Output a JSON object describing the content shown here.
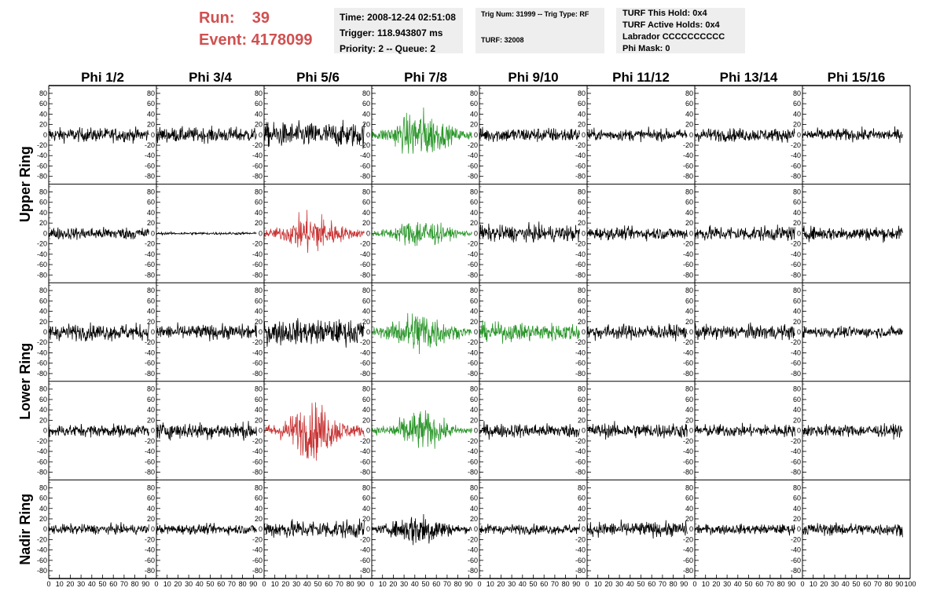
{
  "header": {
    "run_label": "Run:    39",
    "event_label": "Event: 4178099",
    "time": "Time: 2008-12-24 02:51:08",
    "trigger": "Trigger: 118.943807 ms",
    "priority": "Priority: 2 -- Queue: 2",
    "trig_num": "Trig Num: 31999 -- Trig Type: RF",
    "turf": "TURF: 32008",
    "turf_this_hold": "TURF This Hold: 0x4",
    "turf_active_holds": "TURF Active Holds: 0x4",
    "labrador": "Labrador CCCCCCCCCC",
    "phi_mask": "Phi Mask: 0"
  },
  "colors": {
    "normal": "#000000",
    "triggered_green": "#2a962a",
    "triggered_red": "#c83232",
    "header_red": "#d05050",
    "info_bg": "#eeeeee"
  },
  "chart_data": {
    "type": "line",
    "phi_labels": [
      "Phi 1/2",
      "Phi 3/4",
      "Phi 5/6",
      "Phi 7/8",
      "Phi 9/10",
      "Phi 11/12",
      "Phi 13/14",
      "Phi 15/16"
    ],
    "ring_labels": [
      "Upper Ring",
      "Lower Ring",
      "Nadir Ring"
    ],
    "x_ticks": [
      "0",
      "10",
      "20",
      "30",
      "40",
      "50",
      "60",
      "70",
      "80",
      "90",
      "100"
    ],
    "y_ticks": [
      "80",
      "60",
      "40",
      "20",
      "0",
      "-20",
      "-40",
      "-60",
      "-80"
    ],
    "xlim": [
      0,
      100
    ],
    "ylim": [
      -95,
      95
    ],
    "grid": false,
    "n_samples": 260,
    "amplitude": [
      [
        17,
        18,
        30,
        45,
        18,
        14,
        16,
        15
      ],
      [
        15,
        3,
        38,
        28,
        20,
        15,
        18,
        17
      ],
      [
        20,
        18,
        30,
        42,
        22,
        18,
        18,
        13
      ],
      [
        15,
        20,
        50,
        35,
        17,
        18,
        15,
        15
      ],
      [
        12,
        12,
        22,
        32,
        12,
        18,
        12,
        15
      ]
    ],
    "pulse_centered": [
      [
        false,
        false,
        false,
        true,
        false,
        false,
        false,
        false
      ],
      [
        false,
        false,
        true,
        true,
        false,
        false,
        false,
        false
      ],
      [
        false,
        false,
        false,
        true,
        false,
        false,
        false,
        false
      ],
      [
        false,
        false,
        true,
        true,
        false,
        false,
        false,
        false
      ],
      [
        false,
        false,
        false,
        true,
        false,
        false,
        false,
        false
      ]
    ],
    "trace_color": [
      [
        "normal",
        "normal",
        "normal",
        "triggered_green",
        "normal",
        "normal",
        "normal",
        "normal"
      ],
      [
        "normal",
        "normal",
        "triggered_red",
        "triggered_green",
        "normal",
        "normal",
        "normal",
        "normal"
      ],
      [
        "normal",
        "normal",
        "normal",
        "triggered_green",
        "triggered_green",
        "normal",
        "normal",
        "normal"
      ],
      [
        "normal",
        "normal",
        "triggered_red",
        "triggered_green",
        "normal",
        "normal",
        "normal",
        "normal"
      ],
      [
        "normal",
        "normal",
        "normal",
        "normal",
        "normal",
        "normal",
        "normal",
        "normal"
      ]
    ]
  }
}
